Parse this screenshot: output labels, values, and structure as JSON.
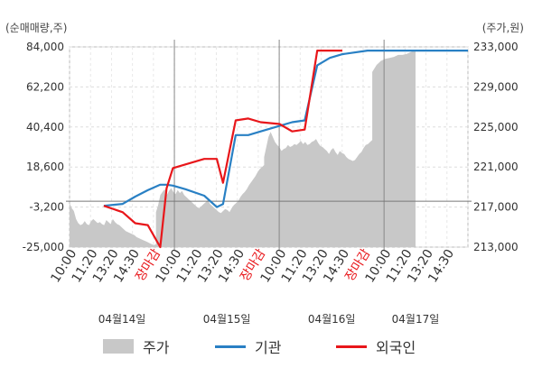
{
  "chart_data": {
    "type": "line",
    "left_axis_unit": "(순매매량,주)",
    "right_axis_unit": "(주가,원)",
    "left_ticks": [
      "84,000",
      "62,200",
      "40,400",
      "18,600",
      "-3,200",
      "-25,000"
    ],
    "right_ticks": [
      "233,000",
      "229,000",
      "225,000",
      "221,000",
      "217,000",
      "213,000"
    ],
    "left_range": [
      -25000,
      84000
    ],
    "right_range": [
      213000,
      233000
    ],
    "x_tick_labels": [
      "10:00",
      "11:20",
      "13:20",
      "14:30",
      "장마감",
      "10:00",
      "11:20",
      "13:20",
      "14:30",
      "장마감",
      "10:00",
      "11:20",
      "13:20",
      "14:30",
      "장마감",
      "10:00",
      "11:20",
      "13:20",
      "14:30"
    ],
    "date_labels": [
      "04월14일",
      "04월15일",
      "04월16일",
      "04월17일"
    ],
    "zero_line": 0,
    "series": [
      {
        "name": "주가",
        "type": "area",
        "color": "#c8c8c8",
        "axis": "right",
        "x": [
          0.0,
          0.1,
          0.2,
          0.3,
          0.4,
          0.5,
          0.6,
          0.7,
          0.8,
          0.9,
          1.0,
          1.1,
          1.2,
          1.3,
          1.4,
          1.5,
          1.6,
          1.7,
          1.8,
          1.9,
          2.0,
          2.1,
          2.2,
          2.3,
          2.4,
          2.5,
          2.6,
          2.7,
          2.8,
          2.9,
          3.0,
          3.1,
          3.2,
          3.3,
          3.4,
          3.5,
          3.6,
          3.7,
          3.8,
          3.9,
          4.0,
          4.0,
          4.1,
          4.2,
          4.3,
          4.4,
          4.5,
          4.6,
          4.7,
          4.8,
          4.9,
          5.0,
          5.1,
          5.2,
          5.3,
          5.4,
          5.5,
          5.6,
          5.7,
          5.8,
          5.9,
          6.0,
          6.1,
          6.2,
          6.3,
          6.4,
          6.5,
          6.6,
          6.7,
          6.8,
          6.9,
          7.0,
          7.1,
          7.2,
          7.3,
          7.4,
          7.5,
          7.6,
          7.7,
          7.8,
          7.9,
          8.0,
          8.1,
          8.2,
          8.3,
          8.4,
          8.5,
          8.6,
          8.7,
          8.8,
          8.9,
          9.0,
          9.0,
          9.1,
          9.2,
          9.3,
          9.4,
          9.5,
          9.6,
          9.7,
          9.8,
          9.9,
          10.0,
          10.1,
          10.2,
          10.3,
          10.4,
          10.5,
          10.6,
          10.7,
          10.8,
          10.9,
          11.0,
          11.1,
          11.2,
          11.3,
          11.4,
          11.5,
          11.6,
          11.7,
          11.8,
          11.9,
          12.0,
          12.1,
          12.2,
          12.3,
          12.4,
          12.5,
          12.6,
          12.7,
          12.8,
          12.9,
          13.0,
          13.1,
          13.2,
          13.3,
          13.4,
          13.5,
          13.6,
          13.7,
          13.8,
          13.9,
          14.0,
          14.0,
          14.2,
          14.4,
          14.6,
          14.8,
          15.0,
          15.2,
          15.4,
          15.6,
          15.8,
          16.0
        ],
        "values": [
          217400,
          216900,
          216600,
          215800,
          215400,
          215200,
          215300,
          215600,
          215300,
          215200,
          215600,
          215800,
          215600,
          215400,
          215500,
          215300,
          215200,
          215700,
          215500,
          215300,
          215800,
          215500,
          215300,
          215200,
          215000,
          214800,
          214600,
          214500,
          214400,
          214300,
          214200,
          214000,
          213900,
          213800,
          213700,
          213600,
          213500,
          213400,
          213300,
          213200,
          213300,
          216500,
          217200,
          218200,
          218500,
          218800,
          218200,
          218600,
          218900,
          218500,
          218300,
          218700,
          218400,
          218600,
          218200,
          218000,
          217800,
          217600,
          217400,
          217200,
          217000,
          216900,
          217100,
          217300,
          217500,
          217700,
          217300,
          217100,
          216900,
          216700,
          216500,
          216400,
          216600,
          216800,
          216700,
          216500,
          216900,
          217200,
          217400,
          217600,
          218000,
          218300,
          218500,
          218800,
          219200,
          219500,
          219800,
          220100,
          220500,
          220800,
          221000,
          221200,
          222000,
          223000,
          224000,
          224500,
          224000,
          223500,
          223200,
          223000,
          222600,
          222800,
          222900,
          223200,
          223000,
          223100,
          223300,
          223200,
          223400,
          223600,
          223300,
          223500,
          223200,
          223300,
          223500,
          223600,
          223800,
          223400,
          223100,
          223000,
          222800,
          222600,
          222300,
          222700,
          222900,
          222500,
          222200,
          222600,
          222400,
          222300,
          222000,
          221800,
          221700,
          221600,
          221700,
          222000,
          222300,
          222500,
          222900,
          223200,
          223300,
          223500,
          223700,
          230500,
          231200,
          231600,
          231800,
          231900,
          232000,
          232200,
          232200,
          232300,
          232500,
          232700
        ]
      },
      {
        "name": "기관",
        "color": "#2980c4",
        "axis": "left",
        "x": [
          2,
          5,
          7,
          9,
          11,
          12,
          13,
          15,
          18,
          20,
          21,
          23,
          25,
          27,
          30,
          32,
          34,
          36,
          38,
          40,
          44,
          48,
          52,
          56,
          60
        ],
        "values": [
          -2500,
          -1500,
          2500,
          6000,
          9000,
          9000,
          8500,
          6500,
          3000,
          -3200,
          -1600,
          36000,
          36000,
          38000,
          41000,
          43000,
          44000,
          74000,
          78000,
          80000,
          82000,
          82000,
          82000,
          82000,
          82000
        ]
      },
      {
        "name": "외국인",
        "color": "#e8161a",
        "axis": "left",
        "x": [
          2,
          5,
          7,
          9,
          11,
          12,
          13,
          15,
          18,
          20,
          21,
          23,
          25,
          27,
          30,
          32,
          34,
          36,
          38,
          40
        ],
        "values": [
          -2500,
          -6000,
          -12000,
          -13000,
          -25000,
          7000,
          18000,
          20000,
          23000,
          23000,
          10000,
          44000,
          45000,
          43000,
          42000,
          38000,
          39000,
          82000,
          82000,
          82000
        ]
      }
    ],
    "legend": [
      "주가",
      "기관",
      "외국인"
    ],
    "legend_position": "bottom",
    "grid": true
  }
}
